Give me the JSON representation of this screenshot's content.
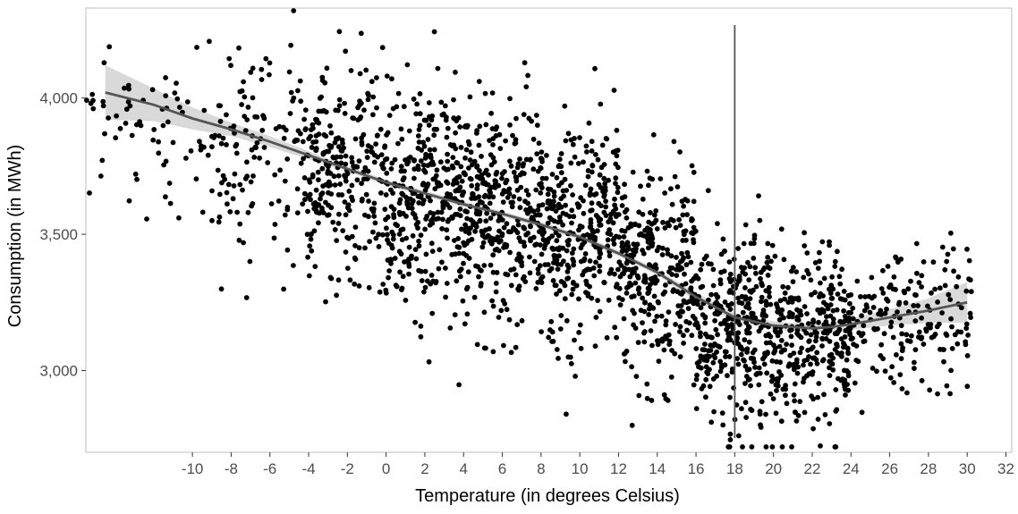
{
  "chart_data": {
    "type": "scatter",
    "title": "",
    "xlabel": "Temperature (in degrees Celsius)",
    "ylabel": "Consumption (in MWh)",
    "xlim": [
      -15.5,
      32.3
    ],
    "ylim": [
      2700,
      4330
    ],
    "grid": false,
    "x_ticks": [
      -10,
      -8,
      -6,
      -4,
      -2,
      0,
      2,
      4,
      6,
      8,
      10,
      12,
      14,
      16,
      18,
      20,
      22,
      24,
      26,
      28,
      30,
      32
    ],
    "y_ticks": [
      3000,
      3500,
      4000
    ],
    "y_tick_labels": [
      "3,000",
      "3,500",
      "4,000"
    ],
    "vline_x": 18,
    "colors": {
      "points": "#000000",
      "smooth": "#555555",
      "band": "#cccccc",
      "vline": "#555555",
      "panel_border": "#bfbfbf"
    },
    "smooth": {
      "x": [
        -14.5,
        -12,
        -10,
        -8,
        -6,
        -4,
        -2,
        0,
        2,
        4,
        6,
        8,
        10,
        12,
        14,
        16,
        18,
        20,
        22,
        23,
        24,
        26,
        28,
        30
      ],
      "y": [
        4020,
        3975,
        3925,
        3885,
        3840,
        3790,
        3740,
        3690,
        3650,
        3610,
        3575,
        3535,
        3490,
        3430,
        3360,
        3270,
        3195,
        3165,
        3155,
        3160,
        3170,
        3195,
        3220,
        3250
      ],
      "lower": [
        3920,
        3915,
        3885,
        3860,
        3820,
        3775,
        3730,
        3680,
        3640,
        3600,
        3565,
        3525,
        3480,
        3420,
        3350,
        3255,
        3180,
        3150,
        3140,
        3145,
        3150,
        3165,
        3175,
        3175
      ],
      "upper": [
        4120,
        4035,
        3965,
        3910,
        3860,
        3805,
        3750,
        3700,
        3660,
        3620,
        3585,
        3545,
        3500,
        3440,
        3370,
        3285,
        3210,
        3180,
        3170,
        3175,
        3190,
        3225,
        3265,
        3325
      ]
    },
    "cloud": {
      "total_points": 2600,
      "bins": [
        {
          "x": [
            -15.5,
            -9
          ],
          "n": 70,
          "center": 3900,
          "spread": 210
        },
        {
          "x": [
            -9,
            -4
          ],
          "n": 140,
          "center": 3850,
          "spread": 260
        },
        {
          "x": [
            -4,
            0
          ],
          "n": 260,
          "center": 3760,
          "spread": 250
        },
        {
          "x": [
            0,
            4
          ],
          "n": 330,
          "center": 3670,
          "spread": 260
        },
        {
          "x": [
            4,
            8
          ],
          "n": 340,
          "center": 3600,
          "spread": 250
        },
        {
          "x": [
            8,
            12
          ],
          "n": 330,
          "center": 3520,
          "spread": 250
        },
        {
          "x": [
            12,
            16
          ],
          "n": 320,
          "center": 3400,
          "spread": 250
        },
        {
          "x": [
            16,
            20
          ],
          "n": 330,
          "center": 3190,
          "spread": 230
        },
        {
          "x": [
            20,
            24
          ],
          "n": 300,
          "center": 3150,
          "spread": 220
        },
        {
          "x": [
            24,
            30.3
          ],
          "n": 180,
          "center": 3180,
          "spread": 170
        }
      ]
    }
  }
}
